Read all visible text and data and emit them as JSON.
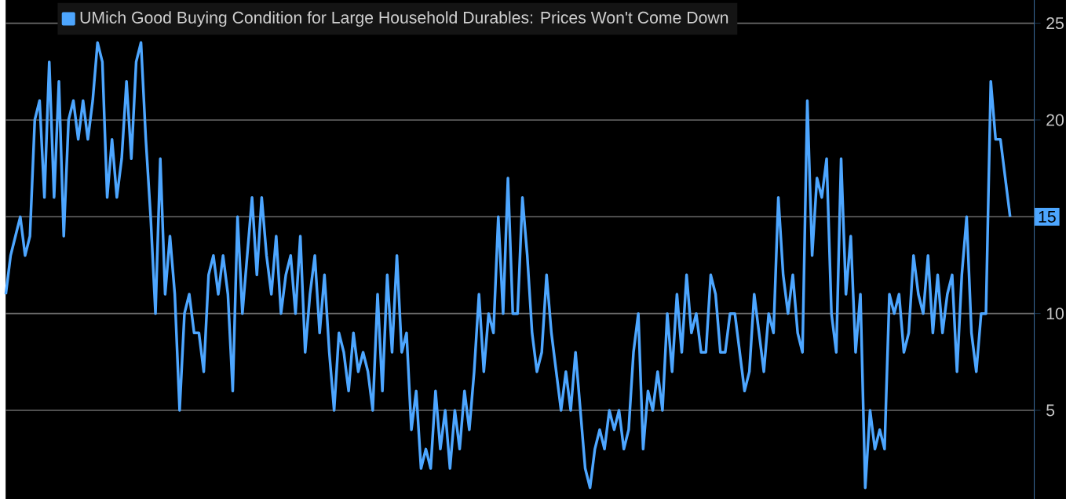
{
  "chart_data": {
    "type": "line",
    "categories": [
      null,
      null,
      null,
      null,
      null,
      null,
      null,
      null,
      null,
      null,
      null,
      null,
      null,
      null,
      null,
      null,
      null,
      null,
      null,
      null,
      null,
      null,
      null,
      null,
      null,
      null,
      null,
      null,
      null,
      null,
      null,
      null,
      null,
      null,
      null,
      null,
      null,
      null,
      null,
      null,
      null,
      null,
      null,
      null,
      null,
      null,
      null,
      null,
      null,
      null,
      null,
      null,
      null,
      null,
      null,
      null,
      null,
      null,
      null,
      null,
      null,
      null,
      null,
      null,
      null,
      null,
      null,
      null,
      null,
      null,
      null,
      null,
      null,
      null,
      null,
      null,
      null,
      null,
      null,
      null,
      null,
      null,
      null,
      null,
      null,
      null,
      null,
      null,
      null,
      null,
      null,
      null,
      null,
      null,
      null,
      null,
      null,
      null,
      null,
      null,
      null,
      null,
      null,
      null,
      null,
      null,
      null,
      null,
      null,
      null,
      null,
      null,
      null,
      null,
      null,
      null,
      null,
      null,
      null,
      null,
      null,
      null,
      null,
      null,
      null,
      null,
      null,
      null,
      null,
      null,
      null,
      null,
      null,
      null,
      null,
      null,
      null,
      null,
      null,
      null,
      null,
      null,
      null,
      null,
      null,
      null,
      null,
      null,
      null,
      null,
      null,
      null,
      null,
      null,
      null,
      null,
      null,
      null,
      null,
      null,
      null,
      null,
      null,
      null,
      null,
      null,
      null,
      null,
      null,
      null,
      null,
      null,
      null,
      null,
      null,
      null,
      null,
      null,
      null,
      null,
      null,
      null,
      null,
      null,
      null,
      null,
      null,
      null,
      null,
      null,
      null,
      null,
      null,
      null,
      null,
      null,
      null,
      null,
      null,
      null,
      null,
      null,
      null,
      null,
      null,
      null,
      null,
      null,
      null,
      null,
      null,
      null,
      null,
      null
    ],
    "series": [
      {
        "name": "UMich Good Buying Condition for Large Household Durables: Prices Won't Come Down",
        "color": "#4da6ff",
        "values": [
          11,
          13,
          14,
          15,
          13,
          14,
          20,
          21,
          16,
          23,
          16,
          22,
          14,
          20,
          21,
          19,
          21,
          19,
          21,
          24,
          23,
          16,
          19,
          16,
          18,
          22,
          18,
          23,
          24,
          19,
          15,
          10,
          18,
          11,
          14,
          11,
          5,
          10,
          11,
          9,
          9,
          7,
          12,
          13,
          11,
          13,
          11,
          6,
          15,
          10,
          13,
          16,
          12,
          16,
          13,
          11,
          14,
          10,
          12,
          13,
          10,
          14,
          8,
          11,
          13,
          9,
          12,
          8,
          5,
          9,
          8,
          6,
          9,
          7,
          8,
          7,
          5,
          11,
          6,
          12,
          8,
          13,
          8,
          9,
          4,
          6,
          2,
          3,
          2,
          6,
          3,
          5,
          2,
          5,
          3,
          6,
          4,
          7,
          11,
          7,
          10,
          9,
          15,
          10,
          17,
          10,
          10,
          16,
          13,
          9,
          7,
          8,
          12,
          9,
          7,
          5,
          7,
          5,
          8,
          5,
          2,
          1,
          3,
          4,
          3,
          5,
          4,
          5,
          3,
          4,
          8,
          10,
          3,
          6,
          5,
          7,
          5,
          10,
          7,
          11,
          8,
          12,
          9,
          10,
          8,
          8,
          12,
          11,
          8,
          8,
          10,
          10,
          8,
          6,
          7,
          11,
          9,
          7,
          10,
          9,
          16,
          12,
          10,
          12,
          9,
          8,
          21,
          13,
          17,
          16,
          18,
          10,
          8,
          18,
          11,
          14,
          8,
          11,
          1,
          5,
          3,
          4,
          3,
          11,
          10,
          11,
          8,
          9,
          13,
          11,
          10,
          13,
          9,
          12,
          9,
          11,
          12,
          7,
          12,
          15,
          9,
          7,
          10,
          10,
          22,
          19,
          19,
          17,
          15,
          null,
          null,
          null,
          null,
          null
        ],
        "value_labels": [
          null,
          null,
          null,
          null,
          null,
          null,
          null,
          null,
          null,
          null,
          null,
          null,
          null,
          null,
          null,
          null,
          null,
          null,
          null,
          null,
          null,
          null,
          null,
          null,
          null,
          null,
          null,
          null,
          null,
          null,
          null,
          null,
          null,
          null,
          null,
          null,
          null,
          null,
          null,
          null,
          null,
          null,
          null,
          null,
          null,
          null,
          null,
          null,
          null,
          null,
          null,
          null,
          null,
          null,
          null,
          null,
          null,
          null,
          null,
          null,
          null,
          null,
          null,
          null,
          null,
          null,
          null,
          null,
          null,
          null,
          null,
          null,
          null,
          null,
          null,
          null,
          null,
          null,
          null,
          null,
          null,
          null,
          null,
          null,
          null,
          null,
          null,
          null,
          null,
          null,
          null,
          null,
          null,
          null,
          null,
          null,
          null,
          null,
          null,
          null,
          null,
          null,
          null,
          null,
          null,
          null,
          null,
          null,
          null,
          null,
          null,
          null,
          null,
          null,
          null,
          null,
          null,
          null,
          null,
          null,
          null,
          null,
          null,
          null,
          null,
          null,
          null,
          null,
          null,
          null,
          null,
          null,
          null,
          null,
          null,
          null,
          null,
          null,
          null,
          null,
          null,
          null,
          null,
          null,
          null,
          null,
          null,
          null,
          null,
          null,
          null,
          null,
          null,
          null,
          null,
          null,
          null,
          null,
          null,
          null,
          null,
          null,
          null,
          null,
          null,
          null,
          null,
          null,
          null,
          null,
          null,
          null,
          null,
          null,
          null,
          null,
          null,
          null,
          null,
          null,
          null,
          null,
          null,
          null,
          null,
          null,
          null,
          null,
          null,
          null,
          null,
          null,
          null,
          null,
          null,
          null,
          null,
          null,
          null,
          null,
          null,
          null,
          null,
          null,
          null,
          null,
          null,
          null,
          "15",
          null,
          null,
          null,
          null,
          null
        ]
      }
    ],
    "ylim": [
      0.4,
      26.2
    ],
    "yticks": [
      5,
      10,
      {
        "value": 15,
        "label": null
      },
      20,
      25
    ],
    "grid": "y",
    "legend": "top left"
  }
}
